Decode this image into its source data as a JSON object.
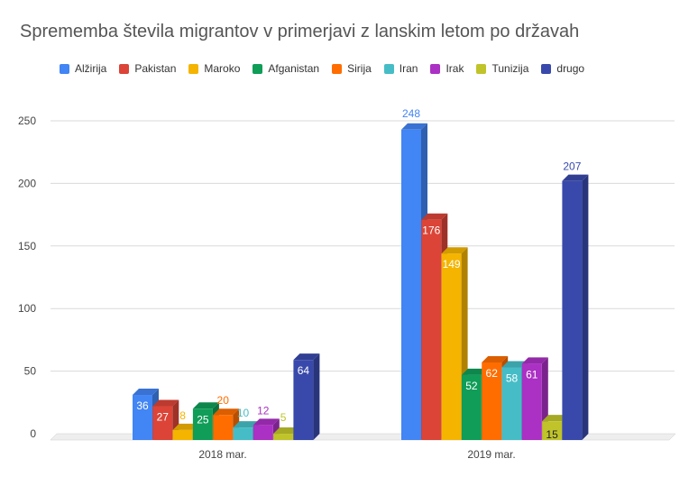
{
  "chart_data": {
    "type": "bar",
    "title": "Sprememba števila migrantov v primerjavi z lanskim letom po državah",
    "categories": [
      "2018 mar.",
      "2019 mar."
    ],
    "series": [
      {
        "name": "Alžirija",
        "color": "#4285f4",
        "values": [
          36,
          248
        ]
      },
      {
        "name": "Pakistan",
        "color": "#db4437",
        "values": [
          27,
          176
        ]
      },
      {
        "name": "Maroko",
        "color": "#f4b400",
        "values": [
          8,
          149
        ]
      },
      {
        "name": "Afganistan",
        "color": "#0f9d58",
        "values": [
          25,
          52
        ]
      },
      {
        "name": "Sirija",
        "color": "#ff6d00",
        "values": [
          20,
          62
        ]
      },
      {
        "name": "Iran",
        "color": "#46bdc6",
        "values": [
          10,
          58
        ]
      },
      {
        "name": "Irak",
        "color": "#ab30c4",
        "values": [
          12,
          61
        ]
      },
      {
        "name": "Tunizija",
        "color": "#c0c42a",
        "values": [
          5,
          15
        ]
      },
      {
        "name": "drugo",
        "color": "#3949ab",
        "values": [
          64,
          207
        ]
      }
    ],
    "y_ticks": [
      "0",
      "50",
      "100",
      "150",
      "200",
      "250"
    ],
    "ylim": [
      0,
      250
    ],
    "grid": true,
    "legend_position": "top",
    "style": "3d-bar"
  }
}
